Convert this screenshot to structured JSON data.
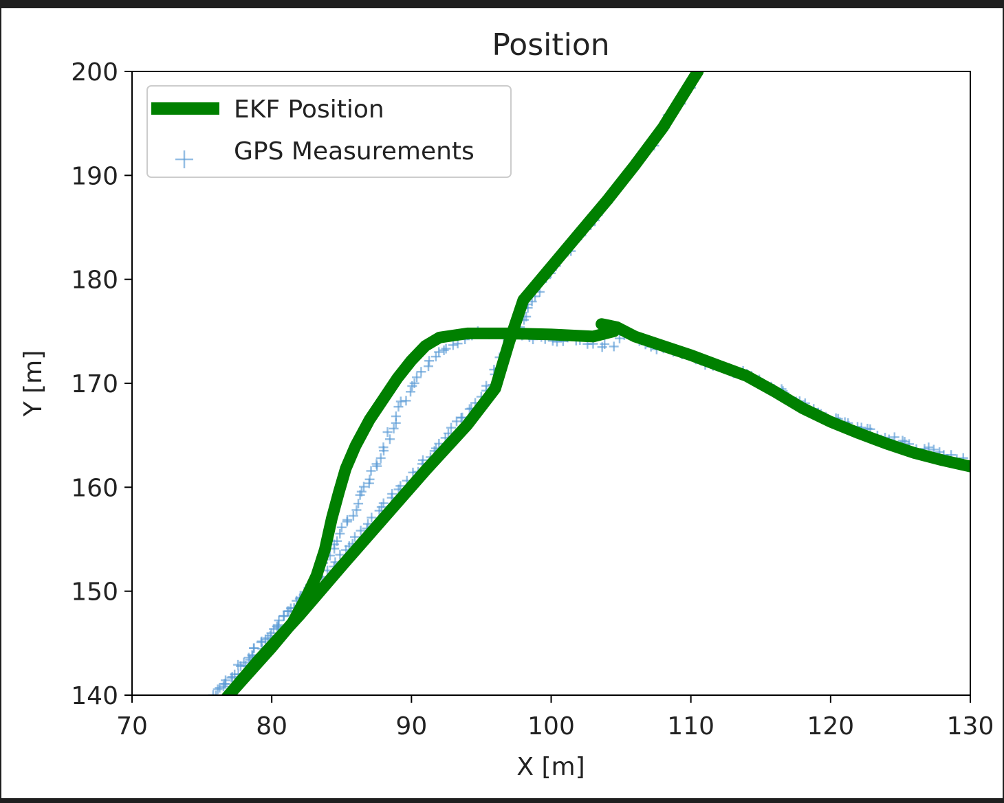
{
  "chart_data": {
    "type": "line",
    "title": "Position",
    "xlabel": "X [m]",
    "ylabel": "Y [m]",
    "xlim": [
      70,
      130
    ],
    "ylim": [
      140,
      200
    ],
    "xticks": [
      70,
      80,
      90,
      100,
      110,
      120,
      130
    ],
    "yticks": [
      140,
      150,
      160,
      170,
      180,
      190,
      200
    ],
    "grid": false,
    "legend_position": "top-left",
    "colors": {
      "ekf": "#008000",
      "gps": "#5b9bd5"
    },
    "series": [
      {
        "name": "EKF Position",
        "kind": "line",
        "points": [
          [
            76.6,
            139.5
          ],
          [
            78,
            141.6
          ],
          [
            80,
            144.6
          ],
          [
            81.5,
            147
          ],
          [
            82.5,
            149.5
          ],
          [
            83.2,
            151.5
          ],
          [
            83.8,
            154
          ],
          [
            84.3,
            157
          ],
          [
            84.8,
            159.5
          ],
          [
            85.3,
            161.8
          ],
          [
            86,
            164
          ],
          [
            87,
            166.5
          ],
          [
            88,
            168.5
          ],
          [
            89,
            170.5
          ],
          [
            90,
            172.2
          ],
          [
            91,
            173.6
          ],
          [
            92,
            174.4
          ],
          [
            94,
            174.8
          ],
          [
            97,
            174.8
          ],
          [
            100,
            174.7
          ],
          [
            103,
            174.5
          ],
          [
            104.5,
            175
          ],
          [
            103.6,
            175.7
          ],
          [
            104.7,
            175.4
          ],
          [
            106,
            174.5
          ],
          [
            108,
            173.6
          ],
          [
            110,
            172.7
          ],
          [
            112,
            171.7
          ],
          [
            114,
            170.7
          ],
          [
            116,
            169.2
          ],
          [
            118,
            167.6
          ],
          [
            120,
            166.3
          ],
          [
            122,
            165.2
          ],
          [
            124,
            164.2
          ],
          [
            126,
            163.3
          ],
          [
            128,
            162.6
          ],
          [
            130,
            162
          ],
          null,
          [
            76.6,
            139.5
          ],
          [
            79,
            143.3
          ],
          [
            82,
            147.7
          ],
          [
            85,
            152.4
          ],
          [
            88,
            157
          ],
          [
            91,
            161.6
          ],
          [
            94,
            166
          ],
          [
            96,
            169.5
          ],
          [
            97,
            174
          ],
          [
            98,
            178
          ],
          [
            100,
            181.2
          ],
          [
            102,
            184.4
          ],
          [
            104,
            187.6
          ],
          [
            106,
            191
          ],
          [
            108,
            194.6
          ],
          [
            110.5,
            200
          ]
        ]
      },
      {
        "name": "GPS Measurements",
        "kind": "scatter",
        "marker": "+",
        "segments": [
          [
            [
              76,
              140
            ],
            [
              78,
              143
            ],
            [
              80,
              146
            ],
            [
              81.5,
              148.5
            ],
            [
              82.5,
              150
            ],
            [
              83.5,
              152
            ],
            [
              84.5,
              154.5
            ],
            [
              85.5,
              157
            ],
            [
              86.5,
              159.5
            ],
            [
              87.5,
              162
            ],
            [
              88.3,
              164.5
            ],
            [
              89,
              167
            ],
            [
              89.8,
              169
            ],
            [
              90.8,
              171
            ],
            [
              92,
              172.8
            ],
            [
              93,
              173.8
            ],
            [
              94.5,
              174.8
            ],
            [
              97,
              174.7
            ],
            [
              100,
              174.3
            ],
            [
              102,
              174.1
            ],
            [
              103.5,
              173.6
            ],
            [
              104.5,
              173.8
            ],
            [
              105.5,
              174.8
            ],
            [
              106.5,
              174
            ],
            [
              108,
              173.3
            ],
            [
              110,
              172.5
            ],
            [
              112,
              171.5
            ],
            [
              114,
              170.8
            ],
            [
              116,
              169.7
            ],
            [
              117.5,
              168.5
            ],
            [
              119,
              167.3
            ],
            [
              121,
              166.3
            ],
            [
              123,
              165.4
            ],
            [
              125,
              164.4
            ],
            [
              127,
              163.6
            ],
            [
              129,
              162.8
            ],
            [
              130,
              162.4
            ]
          ],
          [
            [
              76,
              140
            ],
            [
              78,
              143.1
            ],
            [
              81,
              147.5
            ],
            [
              84,
              152
            ],
            [
              87,
              156.6
            ],
            [
              90,
              161.2
            ],
            [
              93,
              165.7
            ],
            [
              95.5,
              169.5
            ],
            [
              97.5,
              175
            ],
            [
              99,
              179
            ],
            [
              101,
              182.5
            ],
            [
              103,
              185.8
            ],
            [
              105,
              189
            ],
            [
              107,
              192.6
            ],
            [
              109,
              196.6
            ],
            [
              110.5,
              200
            ]
          ]
        ]
      }
    ]
  }
}
